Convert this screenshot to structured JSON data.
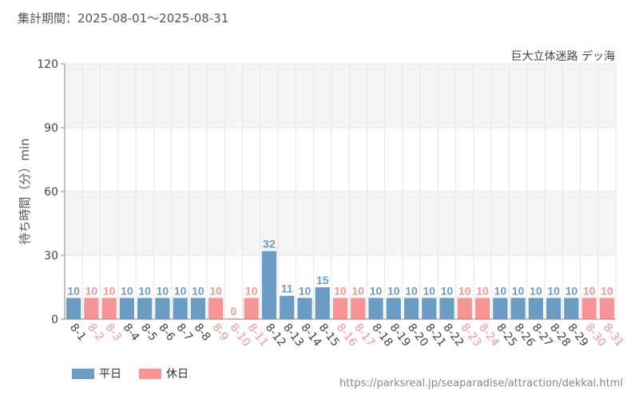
{
  "period": "集計期間：2025-08-01～2025-08-31",
  "attraction": "巨大立体迷路 デッ海",
  "source_url": "https://parksreal.jp/seaparadise/attraction/dekkai.html",
  "colors": {
    "weekday": "#6b9cc6",
    "holiday": "#f99494",
    "grid": "#e6e6e6",
    "band": "#f5f5f5"
  },
  "legend": [
    {
      "label": "平日",
      "color": "#6b9cc6"
    },
    {
      "label": "休日",
      "color": "#f99494"
    }
  ],
  "chart_data": {
    "type": "bar",
    "title": "",
    "xlabel": "",
    "ylabel": "待ち時間（分）min",
    "ylim": [
      0,
      120
    ],
    "yticks": [
      0,
      30,
      60,
      90,
      120
    ],
    "grid": true,
    "legend_position": "bottom-left",
    "categories": [
      "8-1",
      "8-2",
      "8-3",
      "8-4",
      "8-5",
      "8-6",
      "8-7",
      "8-8",
      "8-9",
      "8-10",
      "8-11",
      "8-12",
      "8-13",
      "8-14",
      "8-15",
      "8-16",
      "8-17",
      "8-18",
      "8-19",
      "8-20",
      "8-21",
      "8-22",
      "8-23",
      "8-24",
      "8-25",
      "8-26",
      "8-27",
      "8-28",
      "8-29",
      "8-30",
      "8-31"
    ],
    "values": [
      10,
      10,
      10,
      10,
      10,
      10,
      10,
      10,
      10,
      0,
      10,
      32,
      11,
      10,
      15,
      10,
      10,
      10,
      10,
      10,
      10,
      10,
      10,
      10,
      10,
      10,
      10,
      10,
      10,
      10,
      10
    ],
    "day_type": [
      "平日",
      "休日",
      "休日",
      "平日",
      "平日",
      "平日",
      "平日",
      "平日",
      "休日",
      "休日",
      "休日",
      "平日",
      "平日",
      "平日",
      "平日",
      "休日",
      "休日",
      "平日",
      "平日",
      "平日",
      "平日",
      "平日",
      "休日",
      "休日",
      "平日",
      "平日",
      "平日",
      "平日",
      "平日",
      "休日",
      "休日"
    ]
  }
}
